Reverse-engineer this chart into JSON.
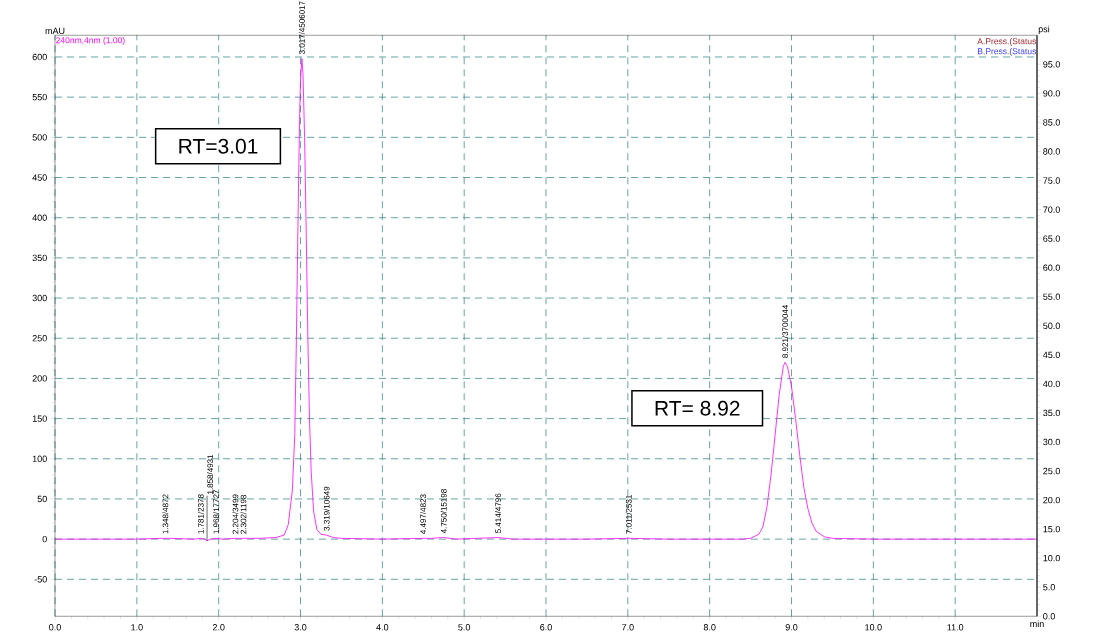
{
  "chart_data": {
    "type": "line",
    "ylabel": "mAU",
    "y2label": "psi",
    "xlabel": "min",
    "xlim": [
      0,
      12
    ],
    "ylim": [
      -96,
      627
    ],
    "y2lim": [
      0,
      100
    ],
    "xticks": [
      {
        "value": 0,
        "label": "0.0"
      },
      {
        "value": 1,
        "label": "1.0"
      },
      {
        "value": 2,
        "label": "2.0"
      },
      {
        "value": 3,
        "label": "3.0"
      },
      {
        "value": 4,
        "label": "4.0"
      },
      {
        "value": 5,
        "label": "5.0"
      },
      {
        "value": 6,
        "label": "6.0"
      },
      {
        "value": 7,
        "label": "7.0"
      },
      {
        "value": 8,
        "label": "8.0"
      },
      {
        "value": 9,
        "label": "9.0"
      },
      {
        "value": 10,
        "label": "10.0"
      },
      {
        "value": 11,
        "label": "11.0"
      }
    ],
    "yticks": [
      -50,
      0,
      50,
      100,
      150,
      200,
      250,
      300,
      350,
      400,
      450,
      500,
      550,
      600
    ],
    "y2ticks": [
      {
        "value": 0,
        "label": "0.0"
      },
      {
        "value": 5,
        "label": "5.0"
      },
      {
        "value": 10,
        "label": "10.0"
      },
      {
        "value": 15,
        "label": "15.0"
      },
      {
        "value": 20,
        "label": "20.0"
      },
      {
        "value": 25,
        "label": "25.0"
      },
      {
        "value": 30,
        "label": "30.0"
      },
      {
        "value": 35,
        "label": "35.0"
      },
      {
        "value": 40,
        "label": "40.0"
      },
      {
        "value": 45,
        "label": "45.0"
      },
      {
        "value": 50,
        "label": "50.0"
      },
      {
        "value": 55,
        "label": "55.0"
      },
      {
        "value": 60,
        "label": "60.0"
      },
      {
        "value": 65,
        "label": "65.0"
      },
      {
        "value": 70,
        "label": "70.0"
      },
      {
        "value": 75,
        "label": "75.0"
      },
      {
        "value": 80,
        "label": "80.0"
      },
      {
        "value": 85,
        "label": "85.0"
      },
      {
        "value": 90,
        "label": "90.0"
      },
      {
        "value": 95,
        "label": "95.0"
      }
    ],
    "grid": true,
    "line_style": "solid",
    "series": [
      {
        "name": "240nm,4nm (1.00)",
        "color": "#ff00ff",
        "x": [
          0,
          0.5,
          1.0,
          1.3,
          1.348,
          1.4,
          1.7,
          1.781,
          1.83,
          1.858,
          1.9,
          1.968,
          2.05,
          2.204,
          2.302,
          2.5,
          2.7,
          2.8,
          2.85,
          2.9,
          2.93,
          2.95,
          2.97,
          2.99,
          3.0,
          3.017,
          3.03,
          3.05,
          3.07,
          3.09,
          3.11,
          3.13,
          3.16,
          3.2,
          3.25,
          3.319,
          3.4,
          3.5,
          4.0,
          4.497,
          4.6,
          4.75,
          4.9,
          5.414,
          5.6,
          6.5,
          7.011,
          7.5,
          8.4,
          8.5,
          8.6,
          8.65,
          8.7,
          8.75,
          8.8,
          8.85,
          8.9,
          8.921,
          8.95,
          9.0,
          9.05,
          9.1,
          9.15,
          9.2,
          9.25,
          9.3,
          9.4,
          9.5,
          10.0,
          11.0,
          12.0
        ],
        "values": [
          0,
          0,
          0,
          1,
          1,
          1,
          0,
          1,
          0,
          -2,
          0,
          1,
          0,
          1,
          1,
          1,
          2,
          5,
          18,
          60,
          130,
          250,
          400,
          530,
          570,
          598,
          580,
          500,
          380,
          250,
          150,
          85,
          35,
          12,
          6,
          5,
          2,
          1,
          0,
          1,
          1,
          2,
          0,
          2,
          0,
          0,
          1,
          0,
          0,
          1,
          6,
          15,
          40,
          80,
          130,
          180,
          215,
          220,
          215,
          190,
          150,
          105,
          65,
          38,
          20,
          10,
          3,
          1,
          0,
          0,
          0
        ]
      },
      {
        "name": "A.Press.(Status",
        "color": "#a0282d",
        "axis": "y2"
      },
      {
        "name": "B.Press.(Status",
        "color": "#3c3cff",
        "axis": "y2"
      }
    ],
    "annotations": [
      "RT=3.01",
      "RT= 8.92",
      {
        "text": "1.348/4872",
        "x": 1.348,
        "y": 1
      },
      {
        "text": "1.781/2378",
        "x": 1.781,
        "y": 1
      },
      {
        "text": "1.858/4931",
        "x": 1.858,
        "y": -2
      },
      {
        "text": "1.968/17727",
        "x": 1.968,
        "y": 1
      },
      {
        "text": "2.204/3499",
        "x": 2.204,
        "y": 1
      },
      {
        "text": "2.302/1198",
        "x": 2.302,
        "y": 1
      },
      {
        "text": "3.017/4506017",
        "x": 3.017,
        "y": 598
      },
      {
        "text": "3.319/10649",
        "x": 3.319,
        "y": 5
      },
      {
        "text": "4.497/4823",
        "x": 4.497,
        "y": 1
      },
      {
        "text": "4.750/15198",
        "x": 4.75,
        "y": 2
      },
      {
        "text": "5.414/4796",
        "x": 5.414,
        "y": 2
      },
      {
        "text": "7.011/2531",
        "x": 7.011,
        "y": 1
      },
      {
        "text": "8.921/3700044",
        "x": 8.921,
        "y": 220
      }
    ]
  }
}
